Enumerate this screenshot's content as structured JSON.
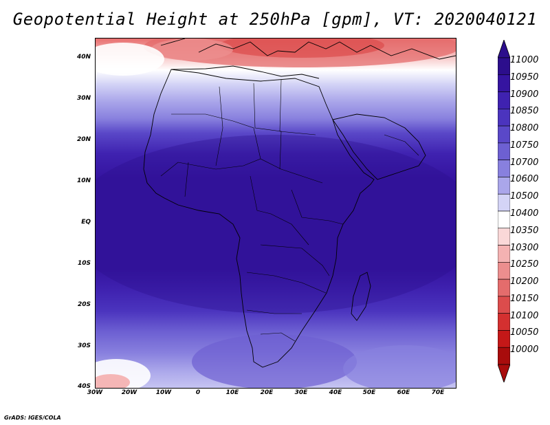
{
  "title": "Geopotential Height at 250hPa [gpm], VT: 2020040121",
  "credit": "GrADS: IGES/COLA",
  "lat_labels": [
    "40N",
    "30N",
    "20N",
    "10N",
    "EQ",
    "10S",
    "20S",
    "30S",
    "40S"
  ],
  "lon_labels": [
    "30W",
    "20W",
    "10W",
    "0",
    "10E",
    "20E",
    "30E",
    "40E",
    "50E",
    "60E",
    "70E"
  ],
  "colorbar": {
    "labels": [
      "11000",
      "10950",
      "10900",
      "10850",
      "10800",
      "10750",
      "10700",
      "10600",
      "10500",
      "10400",
      "10350",
      "10300",
      "10250",
      "10200",
      "10150",
      "10100",
      "10050",
      "10000"
    ],
    "colors": [
      "#2c0e8c",
      "#3514a0",
      "#3f22b0",
      "#4b34be",
      "#5a48c8",
      "#6d60d2",
      "#8880de",
      "#aaa6ea",
      "#d4d4f6",
      "#ffffff",
      "#fad8d8",
      "#f4b2b2",
      "#ec8e8e",
      "#e46c6c",
      "#dc4c4c",
      "#d43030",
      "#c41818",
      "#a80c0c"
    ],
    "max_arrow_color": "#2c0e8c",
    "min_arrow_color": "#a80c0c"
  },
  "map": {
    "lon_range": [
      -30,
      75
    ],
    "lat_range": [
      -40,
      45
    ],
    "field_colors": {
      "deep": "#3818a8",
      "mid": "#5a48c8",
      "light": "#aaa6ea",
      "pale": "#d4d4f6",
      "neutral": "#ffffff",
      "pink": "#f4b2b2",
      "red": "#e46c6c"
    }
  }
}
